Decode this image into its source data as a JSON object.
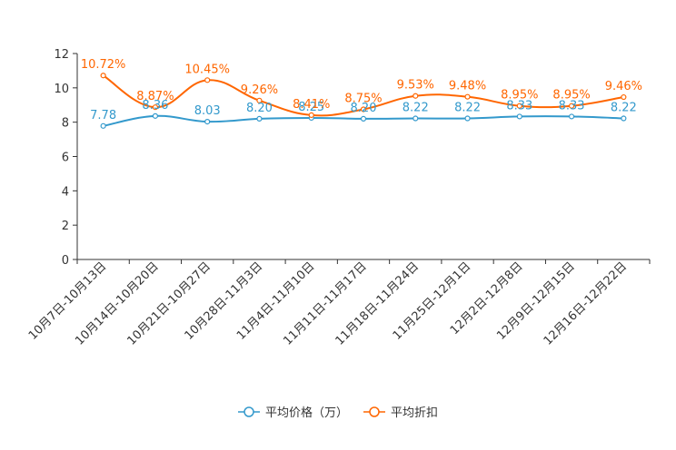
{
  "chart_data": {
    "type": "line",
    "categories": [
      "10月7日-10月13日",
      "10月14日-10月20日",
      "10月21日-10月27日",
      "10月28日-11月3日",
      "11月4日-11月10日",
      "11月11日-11月17日",
      "11月18日-11月24日",
      "11月25日-12月1日",
      "12月2日-12月8日",
      "12月9日-12月15日",
      "12月16日-12月22日"
    ],
    "ylim": [
      0,
      12
    ],
    "yticks": [
      0,
      2,
      4,
      6,
      8,
      10,
      12
    ],
    "series": [
      {
        "name": "平均价格（万）",
        "color": "#3399cc",
        "values": [
          7.78,
          8.36,
          8.03,
          8.2,
          8.25,
          8.2,
          8.22,
          8.22,
          8.33,
          8.33,
          8.22
        ],
        "labels": [
          "7.78",
          "8.36",
          "8.03",
          "8.20",
          "8.25",
          "8.20",
          "8.22",
          "8.22",
          "8.33",
          "8.33",
          "8.22"
        ]
      },
      {
        "name": "平均折扣",
        "color": "#ff6600",
        "values": [
          10.72,
          8.87,
          10.45,
          9.26,
          8.41,
          8.75,
          9.53,
          9.48,
          8.95,
          8.95,
          9.46
        ],
        "labels": [
          "10.72%",
          "8.87%",
          "10.45%",
          "9.26%",
          "8.41%",
          "8.75%",
          "9.53%",
          "9.48%",
          "8.95%",
          "8.95%",
          "9.46%"
        ]
      }
    ],
    "legend_position": "bottom-center",
    "grid": false
  }
}
